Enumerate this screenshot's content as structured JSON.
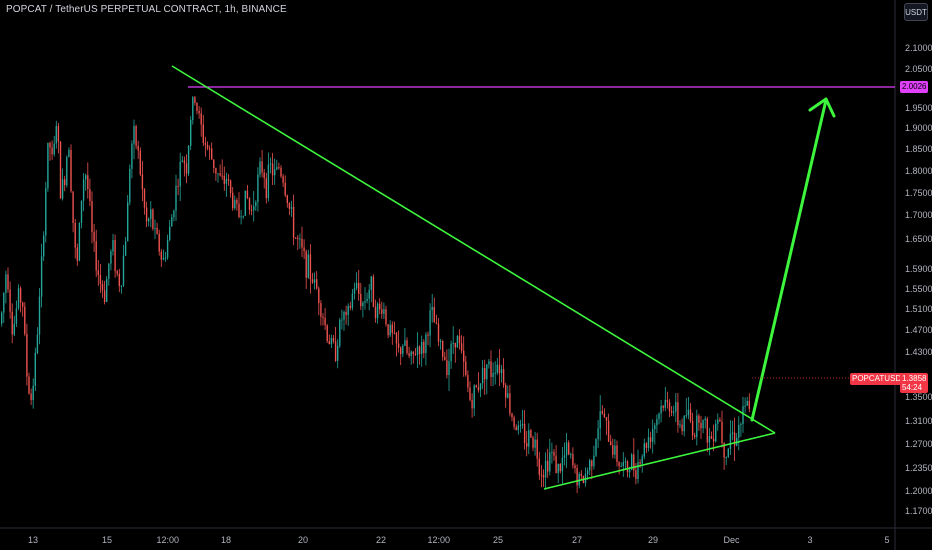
{
  "header": {
    "title": "POPCAT / TetherUS PERPETUAL CONTRACT, 1h, BINANCE",
    "currency_label": "USDT"
  },
  "price_tags": {
    "level": "2.0026",
    "symbol": "POPCATUSDT.P",
    "last_price": "1.3858",
    "countdown": "54:24"
  },
  "colors": {
    "up": "#26a69a",
    "down": "#ef5350",
    "trendline": "#3df53d",
    "level_line": "#e040fb",
    "background": "#000000"
  },
  "chart_data": {
    "type": "candlestick",
    "exchange": "BINANCE",
    "symbol": "POPCATUSDT.P",
    "interval": "1h",
    "y_ticks": [
      "2.1000",
      "2.0500",
      "2.0026",
      "1.9500",
      "1.9000",
      "1.8500",
      "1.8000",
      "1.7500",
      "1.7000",
      "1.6500",
      "1.5900",
      "1.5500",
      "1.5100",
      "1.4700",
      "1.4300",
      "1.3500",
      "1.3100",
      "1.2700",
      "1.2350",
      "1.2000",
      "1.1700"
    ],
    "ylim": [
      1.15,
      2.13
    ],
    "x_ticks": [
      "13",
      "15",
      "12:00",
      "18",
      "20",
      "22",
      "12:00",
      "25",
      "27",
      "29",
      "Dec",
      "3",
      "5"
    ],
    "candle_count": 360,
    "key_prices": [
      {
        "t": 0,
        "p": 1.55
      },
      {
        "t": 10,
        "p": 1.68
      },
      {
        "t": 16,
        "p": 1.52
      },
      {
        "t": 24,
        "p": 1.4
      },
      {
        "t": 38,
        "p": 1.98
      },
      {
        "t": 52,
        "p": 1.82
      },
      {
        "t": 64,
        "p": 1.94
      },
      {
        "t": 78,
        "p": 1.62
      },
      {
        "t": 92,
        "p": 1.84
      },
      {
        "t": 108,
        "p": 1.7
      },
      {
        "t": 122,
        "p": 1.6
      },
      {
        "t": 136,
        "p": 1.9
      },
      {
        "t": 146,
        "p": 2.04
      },
      {
        "t": 156,
        "p": 1.86
      },
      {
        "t": 172,
        "p": 1.78
      },
      {
        "t": 186,
        "p": 1.82
      },
      {
        "t": 196,
        "p": 1.84
      },
      {
        "t": 210,
        "p": 1.72
      },
      {
        "t": 226,
        "p": 1.52
      },
      {
        "t": 240,
        "p": 1.62
      },
      {
        "t": 254,
        "p": 1.58
      },
      {
        "t": 268,
        "p": 1.46
      },
      {
        "t": 284,
        "p": 1.54
      },
      {
        "t": 298,
        "p": 1.4
      },
      {
        "t": 312,
        "p": 1.47
      },
      {
        "t": 322,
        "p": 1.34
      },
      {
        "t": 334,
        "p": 1.27
      },
      {
        "t": 344,
        "p": 1.22
      },
      {
        "t": 350,
        "p": 1.25
      }
    ],
    "secondary_prices": [
      {
        "t": 350,
        "p": 1.25
      },
      {
        "t": 358,
        "p": 1.23
      },
      {
        "t": 368,
        "p": 1.34
      },
      {
        "t": 378,
        "p": 1.28
      },
      {
        "t": 388,
        "p": 1.34
      },
      {
        "t": 398,
        "p": 1.3
      },
      {
        "t": 408,
        "p": 1.31
      },
      {
        "t": 418,
        "p": 1.32
      }
    ],
    "drawings": {
      "resistance_trendline": {
        "from": {
          "x_frac": 0.184,
          "price": 2.1
        },
        "to": {
          "x_frac": 0.83,
          "price": 1.29
        }
      },
      "support_trendline": {
        "from": {
          "x_frac": 0.585,
          "price": 1.205
        },
        "to": {
          "x_frac": 0.83,
          "price": 1.29
        }
      },
      "horizontal_level": 2.0026,
      "projection_arrow": {
        "from_price": 1.31,
        "to_price": 1.97
      }
    }
  }
}
